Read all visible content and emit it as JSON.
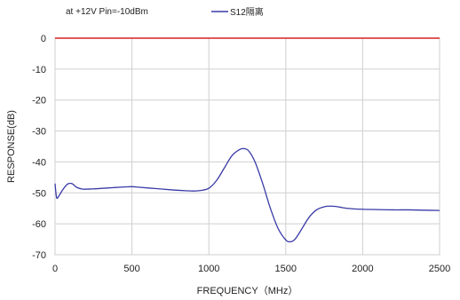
{
  "chart_data": {
    "type": "line",
    "annotation": "at +12V Pin=-10dBm",
    "xlabel": "FREQUENCY（MHz）",
    "ylabel": "RESPONSE(dB)",
    "xlim": [
      0,
      2500
    ],
    "ylim": [
      -70,
      0
    ],
    "xticks": [
      0,
      500,
      1000,
      1500,
      2000,
      2500
    ],
    "yticks": [
      0,
      -10,
      -20,
      -30,
      -40,
      -50,
      -60,
      -70
    ],
    "grid": true,
    "legend_position": "top-center",
    "reference_line": {
      "y": 0,
      "color": "#d62020"
    },
    "series": [
      {
        "name": "S12隔离",
        "color": "#3a3aa8",
        "x": [
          0,
          10,
          25,
          50,
          80,
          110,
          140,
          180,
          250,
          350,
          450,
          500,
          550,
          650,
          750,
          850,
          900,
          950,
          1000,
          1050,
          1100,
          1150,
          1200,
          1230,
          1260,
          1300,
          1350,
          1400,
          1450,
          1500,
          1530,
          1560,
          1600,
          1650,
          1700,
          1750,
          1800,
          1850,
          1900,
          2000,
          2100,
          2200,
          2300,
          2400,
          2500
        ],
        "y": [
          -47,
          -51.5,
          -51,
          -49,
          -47.2,
          -47,
          -48.2,
          -48.8,
          -48.7,
          -48.4,
          -48.1,
          -48,
          -48.2,
          -48.6,
          -49,
          -49.3,
          -49.4,
          -49.2,
          -48.5,
          -46,
          -42,
          -38,
          -36,
          -35.7,
          -36.5,
          -40,
          -47,
          -55,
          -61.5,
          -65.2,
          -65.8,
          -65,
          -62,
          -58,
          -55.5,
          -54.5,
          -54.3,
          -54.6,
          -55,
          -55.3,
          -55.4,
          -55.5,
          -55.5,
          -55.6,
          -55.7
        ]
      }
    ]
  }
}
